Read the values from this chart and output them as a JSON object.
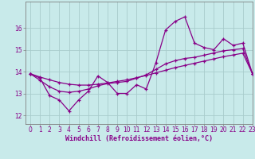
{
  "xlabel": "Windchill (Refroidissement éolien,°C)",
  "xlim": [
    -0.5,
    23
  ],
  "ylim": [
    11.6,
    17.2
  ],
  "yticks": [
    12,
    13,
    14,
    15,
    16
  ],
  "xticks": [
    0,
    1,
    2,
    3,
    4,
    5,
    6,
    7,
    8,
    9,
    10,
    11,
    12,
    13,
    14,
    15,
    16,
    17,
    18,
    19,
    20,
    21,
    22,
    23
  ],
  "line1_x": [
    0,
    1,
    2,
    3,
    4,
    5,
    6,
    7,
    8,
    9,
    10,
    11,
    12,
    13,
    14,
    15,
    16,
    17,
    18,
    19,
    20,
    21,
    22,
    23
  ],
  "line1_y": [
    13.9,
    13.7,
    12.9,
    12.7,
    12.2,
    12.7,
    13.1,
    13.8,
    13.5,
    13.0,
    13.0,
    13.4,
    13.2,
    14.4,
    15.9,
    16.3,
    16.5,
    15.3,
    15.1,
    15.0,
    15.5,
    15.2,
    15.3,
    13.9
  ],
  "line2_x": [
    0,
    1,
    2,
    3,
    4,
    5,
    6,
    7,
    8,
    9,
    10,
    11,
    12,
    13,
    14,
    15,
    16,
    17,
    18,
    19,
    20,
    21,
    22,
    23
  ],
  "line2_y": [
    13.9,
    13.6,
    13.3,
    13.1,
    13.05,
    13.1,
    13.2,
    13.35,
    13.45,
    13.5,
    13.55,
    13.7,
    13.85,
    14.1,
    14.35,
    14.5,
    14.6,
    14.65,
    14.75,
    14.85,
    14.95,
    15.0,
    15.05,
    13.9
  ],
  "line3_x": [
    0,
    1,
    2,
    3,
    4,
    5,
    6,
    7,
    8,
    9,
    10,
    11,
    12,
    13,
    14,
    15,
    16,
    17,
    18,
    19,
    20,
    21,
    22,
    23
  ],
  "line3_y": [
    13.9,
    13.75,
    13.62,
    13.5,
    13.42,
    13.38,
    13.38,
    13.42,
    13.48,
    13.55,
    13.62,
    13.72,
    13.82,
    13.94,
    14.06,
    14.18,
    14.28,
    14.38,
    14.48,
    14.58,
    14.68,
    14.76,
    14.84,
    13.9
  ],
  "line_color": "#880088",
  "bg_color": "#c8eaea",
  "grid_color": "#a8cccc",
  "font_color": "#880088",
  "tick_fontsize": 5.5,
  "xlabel_fontsize": 6.0
}
